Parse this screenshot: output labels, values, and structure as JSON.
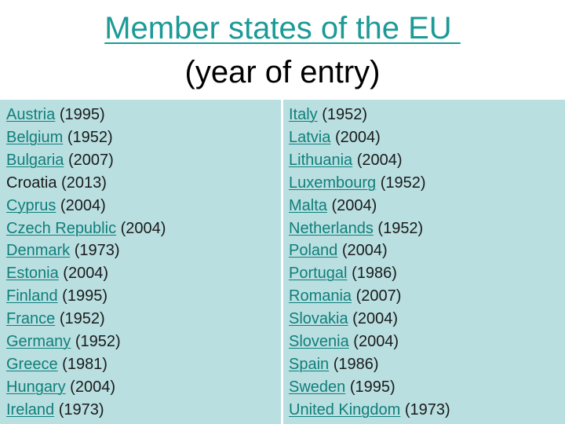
{
  "title": {
    "main": "Member states of the EU ",
    "sub": "(year of entry)"
  },
  "colors": {
    "link": "#0f7f7a",
    "title": "#1b9a96",
    "panel_bg": "#b9dfe1"
  },
  "left_column": [
    {
      "country": "Austria",
      "year": "(1995)",
      "linked": true
    },
    {
      "country": "Belgium",
      "year": "(1952)",
      "linked": true
    },
    {
      "country": "Bulgaria",
      "year": "(2007)",
      "linked": true
    },
    {
      "country": "Croatia",
      "year": "(2013)",
      "linked": false
    },
    {
      "country": "Cyprus",
      "year": "(2004)",
      "linked": true
    },
    {
      "country": "Czech Republic",
      "year": "(2004)",
      "linked": true
    },
    {
      "country": "Denmark",
      "year": "(1973)",
      "linked": true
    },
    {
      "country": "Estonia",
      "year": "(2004)",
      "linked": true
    },
    {
      "country": "Finland",
      "year": "(1995)",
      "linked": true
    },
    {
      "country": "France",
      "year": "(1952)",
      "linked": true
    },
    {
      "country": "Germany",
      "year": "(1952)",
      "linked": true
    },
    {
      "country": "Greece",
      "year": "(1981)",
      "linked": true
    },
    {
      "country": "Hungary",
      "year": "(2004)",
      "linked": true
    },
    {
      "country": "Ireland",
      "year": "(1973)",
      "linked": true
    }
  ],
  "right_column": [
    {
      "country": "Italy",
      "year": "(1952)",
      "linked": true
    },
    {
      "country": "Latvia",
      "year": "(2004)",
      "linked": true
    },
    {
      "country": "Lithuania",
      "year": "(2004)",
      "linked": true
    },
    {
      "country": "Luxembourg",
      "year": "(1952)",
      "linked": true
    },
    {
      "country": "Malta",
      "year": "(2004)",
      "linked": true
    },
    {
      "country": "Netherlands",
      "year": "(1952)",
      "linked": true
    },
    {
      "country": "Poland",
      "year": "(2004)",
      "linked": true
    },
    {
      "country": "Portugal",
      "year": "(1986)",
      "linked": true
    },
    {
      "country": "Romania",
      "year": "(2007)",
      "linked": true
    },
    {
      "country": "Slovakia",
      "year": "(2004)",
      "linked": true
    },
    {
      "country": "Slovenia",
      "year": "(2004)",
      "linked": true
    },
    {
      "country": "Spain",
      "year": "(1986)",
      "linked": true
    },
    {
      "country": "Sweden",
      "year": "(1995)",
      "linked": true
    },
    {
      "country": "United Kingdom",
      "year": "(1973)",
      "linked": true
    }
  ]
}
